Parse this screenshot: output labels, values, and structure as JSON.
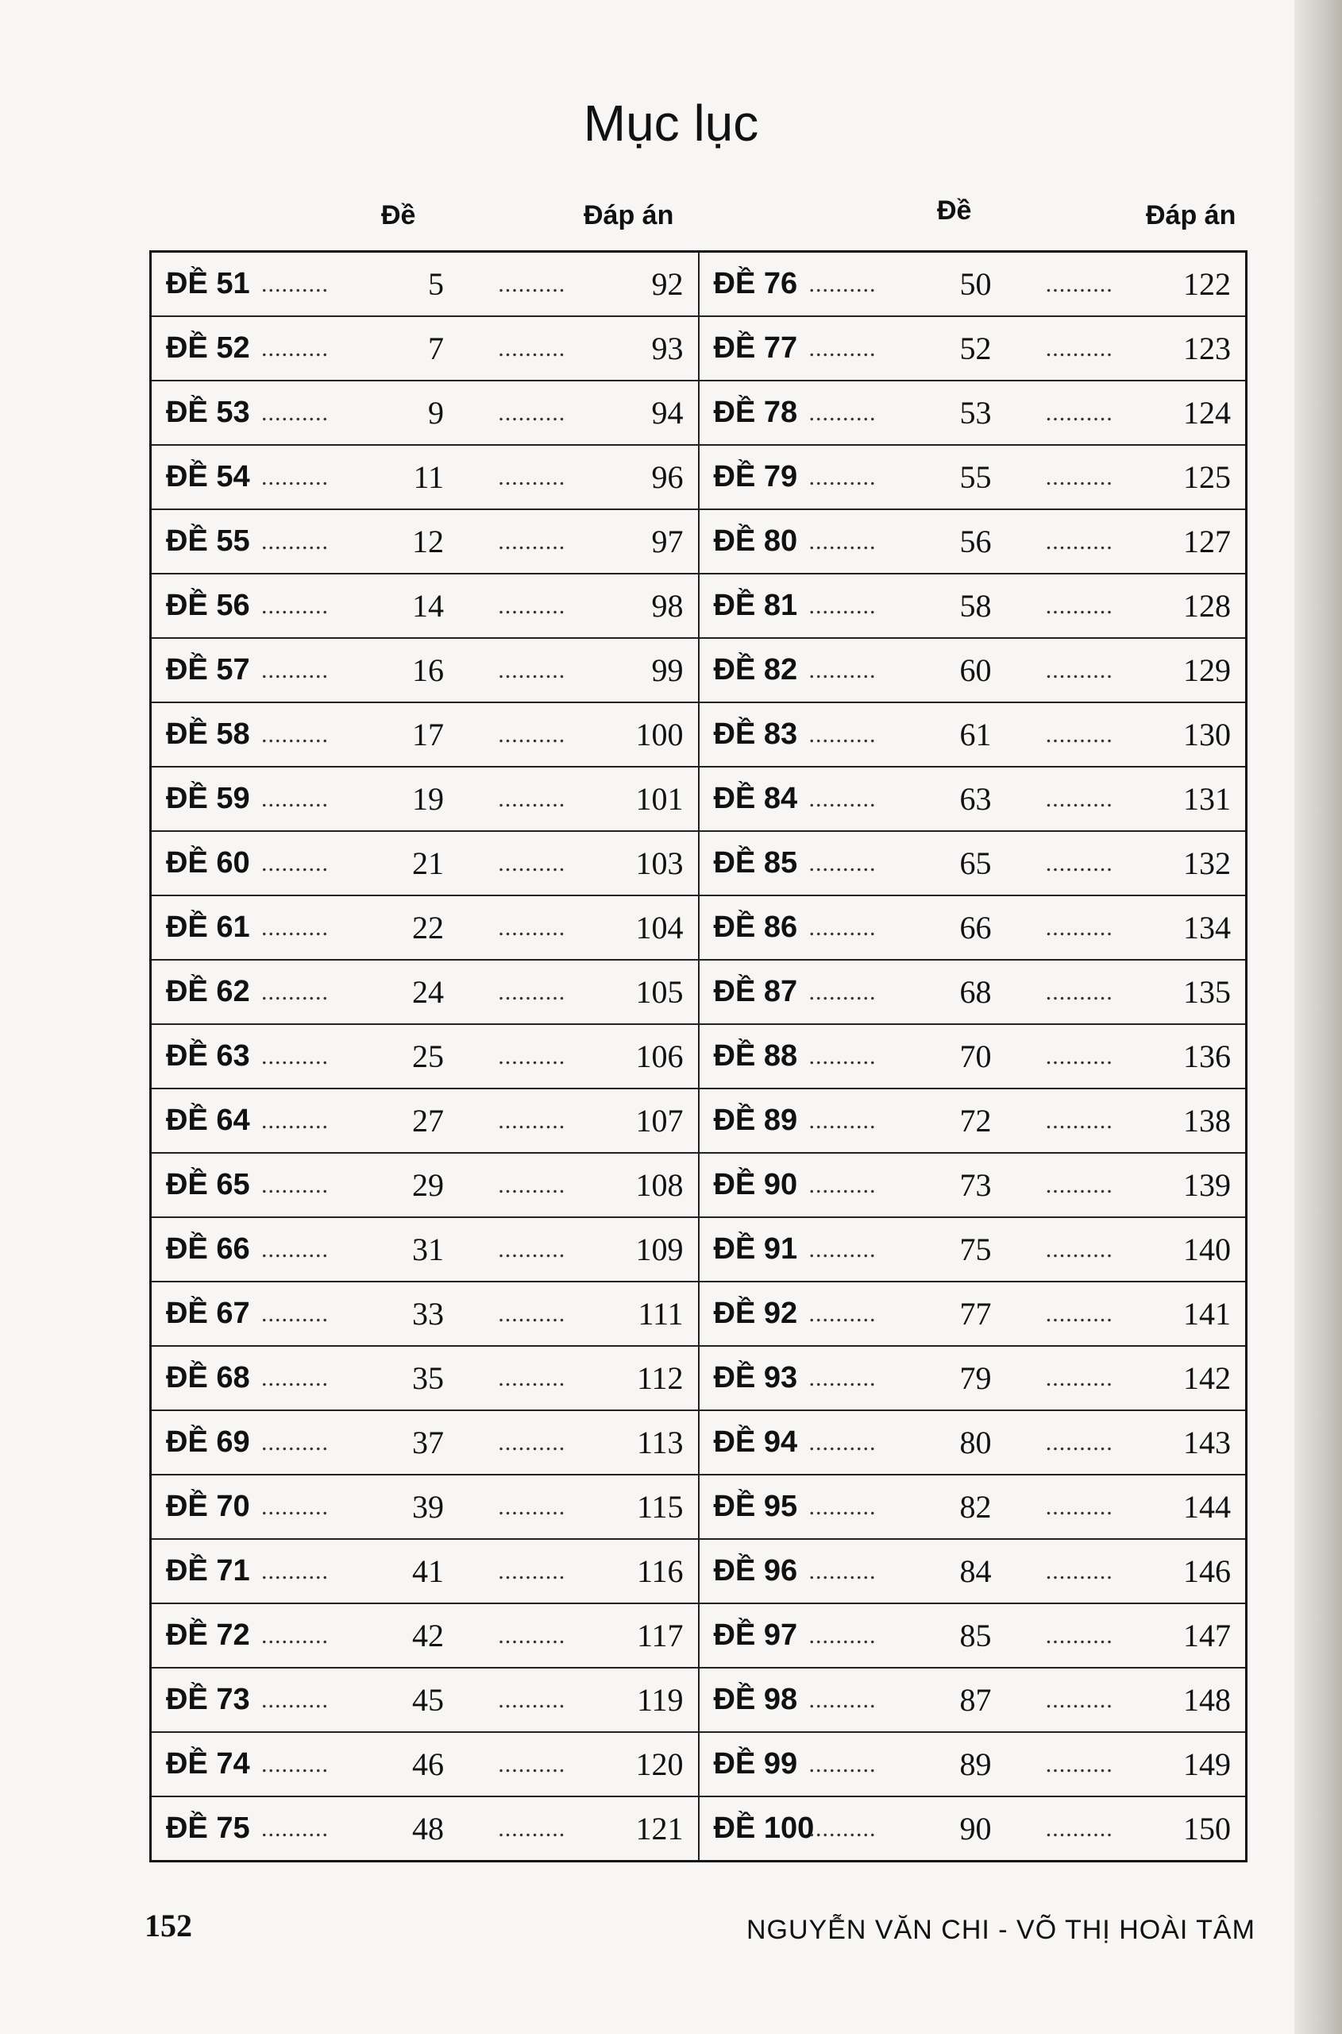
{
  "title": "Mục lục",
  "headers": {
    "de": "Đề",
    "dap_an": "Đáp án"
  },
  "left": [
    [
      "ĐỀ 51",
      "5",
      "92"
    ],
    [
      "ĐỀ 52",
      "7",
      "93"
    ],
    [
      "ĐỀ 53",
      "9",
      "94"
    ],
    [
      "ĐỀ 54",
      "11",
      "96"
    ],
    [
      "ĐỀ 55",
      "12",
      "97"
    ],
    [
      "ĐỀ 56",
      "14",
      "98"
    ],
    [
      "ĐỀ 57",
      "16",
      "99"
    ],
    [
      "ĐỀ 58",
      "17",
      "100"
    ],
    [
      "ĐỀ 59",
      "19",
      "101"
    ],
    [
      "ĐỀ 60",
      "21",
      "103"
    ],
    [
      "ĐỀ 61",
      "22",
      "104"
    ],
    [
      "ĐỀ 62",
      "24",
      "105"
    ],
    [
      "ĐỀ 63",
      "25",
      "106"
    ],
    [
      "ĐỀ 64",
      "27",
      "107"
    ],
    [
      "ĐỀ 65",
      "29",
      "108"
    ],
    [
      "ĐỀ 66",
      "31",
      "109"
    ],
    [
      "ĐỀ 67",
      "33",
      "111"
    ],
    [
      "ĐỀ 68",
      "35",
      "112"
    ],
    [
      "ĐỀ 69",
      "37",
      "113"
    ],
    [
      "ĐỀ 70",
      "39",
      "115"
    ],
    [
      "ĐỀ 71",
      "41",
      "116"
    ],
    [
      "ĐỀ 72",
      "42",
      "117"
    ],
    [
      "ĐỀ 73",
      "45",
      "119"
    ],
    [
      "ĐỀ 74",
      "46",
      "120"
    ],
    [
      "ĐỀ 75",
      "48",
      "121"
    ]
  ],
  "right": [
    [
      "ĐỀ 76",
      "50",
      "122"
    ],
    [
      "ĐỀ 77",
      "52",
      "123"
    ],
    [
      "ĐỀ 78",
      "53",
      "124"
    ],
    [
      "ĐỀ 79",
      "55",
      "125"
    ],
    [
      "ĐỀ 80",
      "56",
      "127"
    ],
    [
      "ĐỀ 81",
      "58",
      "128"
    ],
    [
      "ĐỀ 82",
      "60",
      "129"
    ],
    [
      "ĐỀ 83",
      "61",
      "130"
    ],
    [
      "ĐỀ 84",
      "63",
      "131"
    ],
    [
      "ĐỀ 85",
      "65",
      "132"
    ],
    [
      "ĐỀ 86",
      "66",
      "134"
    ],
    [
      "ĐỀ 87",
      "68",
      "135"
    ],
    [
      "ĐỀ 88",
      "70",
      "136"
    ],
    [
      "ĐỀ 89",
      "72",
      "138"
    ],
    [
      "ĐỀ 90",
      "73",
      "139"
    ],
    [
      "ĐỀ 91",
      "75",
      "140"
    ],
    [
      "ĐỀ 92",
      "77",
      "141"
    ],
    [
      "ĐỀ 93",
      "79",
      "142"
    ],
    [
      "ĐỀ 94",
      "80",
      "143"
    ],
    [
      "ĐỀ 95",
      "82",
      "144"
    ],
    [
      "ĐỀ 96",
      "84",
      "146"
    ],
    [
      "ĐỀ 97",
      "85",
      "147"
    ],
    [
      "ĐỀ 98",
      "87",
      "148"
    ],
    [
      "ĐỀ 99",
      "89",
      "149"
    ],
    [
      "ĐỀ 100",
      "90",
      "150"
    ]
  ],
  "footer": {
    "page_number": "152",
    "authors": "NGUYỄN VĂN CHI - VÕ THỊ HOÀI TÂM"
  }
}
